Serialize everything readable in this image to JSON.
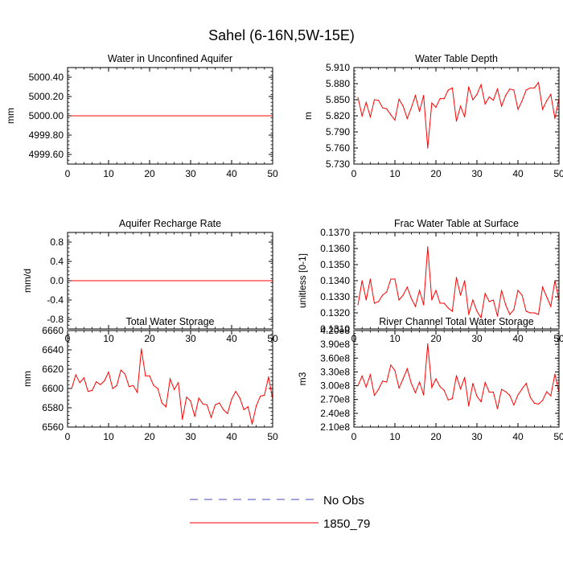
{
  "figure_title": "Sahel (6-16N,5W-15E)",
  "colors": {
    "model": "#ff0000",
    "obs": "#4b4bbb",
    "axis": "#000000"
  },
  "legend": [
    {
      "label": "No Obs",
      "style": "dashed",
      "color": "#4b4bbb"
    },
    {
      "label": "1850_79",
      "style": "solid",
      "color": "#ff0000"
    }
  ],
  "chart_data": [
    {
      "type": "line",
      "title": "Water in Unconfined Aquifer",
      "ylabel": "mm",
      "xlabel": "",
      "xlim": [
        0,
        50
      ],
      "ylim": [
        4999.5,
        5000.5
      ],
      "xticks": [
        0,
        10,
        20,
        30,
        40,
        50
      ],
      "xtick_labels": [
        "0",
        "10",
        "20",
        "30",
        "40",
        "50"
      ],
      "yticks": [
        4999.6,
        4999.8,
        5000.0,
        5000.2,
        5000.4
      ],
      "ytick_labels": [
        "4999.60",
        "4999.80",
        "5000.00",
        "5000.20",
        "5000.40"
      ],
      "series": [
        {
          "name": "1850_79",
          "x": [
            1,
            50
          ],
          "values": [
            5000.0,
            5000.0
          ]
        }
      ]
    },
    {
      "type": "line",
      "title": "Water Table Depth",
      "ylabel": "m",
      "xlabel": "",
      "xlim": [
        0,
        50
      ],
      "ylim": [
        5.73,
        5.91
      ],
      "xticks": [
        0,
        10,
        20,
        30,
        40,
        50
      ],
      "xtick_labels": [
        "0",
        "10",
        "20",
        "30",
        "40",
        "50"
      ],
      "yticks": [
        5.73,
        5.76,
        5.79,
        5.82,
        5.85,
        5.88,
        5.91
      ],
      "ytick_labels": [
        "5.730",
        "5.760",
        "5.790",
        "5.820",
        "5.850",
        "5.880",
        "5.910"
      ],
      "series": [
        {
          "name": "1850_79",
          "x_start": 1,
          "values": [
            5.854,
            5.82,
            5.845,
            5.818,
            5.85,
            5.849,
            5.835,
            5.833,
            5.822,
            5.812,
            5.851,
            5.838,
            5.815,
            5.835,
            5.858,
            5.828,
            5.858,
            5.76,
            5.844,
            5.836,
            5.852,
            5.852,
            5.868,
            5.872,
            5.81,
            5.838,
            5.818,
            5.874,
            5.85,
            5.86,
            5.878,
            5.842,
            5.855,
            5.849,
            5.87,
            5.838,
            5.858,
            5.87,
            5.868,
            5.832,
            5.848,
            5.868,
            5.872,
            5.872,
            5.882,
            5.832,
            5.848,
            5.86,
            5.815,
            5.852
          ]
        }
      ]
    },
    {
      "type": "line",
      "title": "Aquifer Recharge Rate",
      "ylabel": "mm/d",
      "xlabel": "",
      "xlim": [
        0,
        50
      ],
      "ylim": [
        -1.0,
        1.0
      ],
      "xticks": [
        0,
        10,
        20,
        30,
        40,
        50
      ],
      "xtick_labels": [
        "0",
        "10",
        "20",
        "30",
        "40",
        "50"
      ],
      "yticks": [
        -0.8,
        -0.4,
        0.0,
        0.4,
        0.8
      ],
      "ytick_labels": [
        "-0.8",
        "-0.4",
        "0.0",
        "0.4",
        "0.8"
      ],
      "series": [
        {
          "name": "1850_79",
          "x": [
            1,
            50
          ],
          "values": [
            0.0,
            0.0
          ]
        }
      ]
    },
    {
      "type": "line",
      "title": "Frac Water Table at Surface",
      "ylabel": "unitless [0-1]",
      "xlabel": "",
      "xlim": [
        0,
        50
      ],
      "ylim": [
        0.131,
        0.137
      ],
      "xticks": [
        0,
        10,
        20,
        30,
        40,
        50
      ],
      "xtick_labels": [
        "0",
        "10",
        "20",
        "30",
        "40",
        "50"
      ],
      "yticks": [
        0.131,
        0.132,
        0.133,
        0.134,
        0.135,
        0.136,
        0.137
      ],
      "ytick_labels": [
        "0.1310",
        "0.1320",
        "0.1330",
        "0.1340",
        "0.1350",
        "0.1360",
        "0.1370"
      ],
      "series": [
        {
          "name": "1850_79",
          "x_start": 1,
          "values": [
            0.1325,
            0.134,
            0.1328,
            0.1341,
            0.1326,
            0.1327,
            0.1331,
            0.1333,
            0.1341,
            0.1341,
            0.1328,
            0.1331,
            0.1336,
            0.1329,
            0.1324,
            0.1334,
            0.1325,
            0.1361,
            0.1328,
            0.1334,
            0.1326,
            0.1326,
            0.1323,
            0.1321,
            0.1342,
            0.1331,
            0.134,
            0.1319,
            0.1328,
            0.1321,
            0.1317,
            0.1332,
            0.1327,
            0.1328,
            0.1318,
            0.1334,
            0.1325,
            0.1319,
            0.1322,
            0.1334,
            0.1331,
            0.1321,
            0.132,
            0.132,
            0.1319,
            0.1336,
            0.133,
            0.1324,
            0.134,
            0.1328
          ]
        }
      ]
    },
    {
      "type": "line",
      "title": "Total Water Storage",
      "ylabel": "mm",
      "xlabel": "",
      "xlim": [
        0,
        50
      ],
      "ylim": [
        6560,
        6660
      ],
      "xticks": [
        0,
        10,
        20,
        30,
        40,
        50
      ],
      "xtick_labels": [
        "0",
        "10",
        "20",
        "30",
        "40",
        "50"
      ],
      "yticks": [
        6560,
        6580,
        6600,
        6620,
        6640,
        6660
      ],
      "ytick_labels": [
        "6560",
        "6580",
        "6600",
        "6620",
        "6640",
        "6660"
      ],
      "series": [
        {
          "name": "1850_79",
          "x_start": 1,
          "values": [
            6600,
            6614,
            6606,
            6611,
            6597,
            6598,
            6607,
            6604,
            6608,
            6617,
            6600,
            6603,
            6619,
            6615,
            6602,
            6603,
            6596,
            6641,
            6613,
            6613,
            6603,
            6600,
            6585,
            6581,
            6610,
            6599,
            6606,
            6568,
            6591,
            6587,
            6571,
            6590,
            6584,
            6583,
            6570,
            6583,
            6585,
            6578,
            6574,
            6589,
            6597,
            6590,
            6578,
            6581,
            6563,
            6582,
            6592,
            6593,
            6612,
            6589
          ]
        }
      ]
    },
    {
      "type": "line",
      "title": "River Channel Total Water Storage",
      "ylabel": "m3",
      "xlabel": "",
      "xlim": [
        0,
        50
      ],
      "ylim": [
        210000000,
        420000000
      ],
      "xticks": [
        0,
        10,
        20,
        30,
        40,
        50
      ],
      "xtick_labels": [
        "0",
        "10",
        "20",
        "30",
        "40",
        "50"
      ],
      "yticks": [
        210000000,
        240000000,
        270000000,
        300000000,
        330000000,
        360000000,
        390000000,
        420000000
      ],
      "ytick_labels": [
        "2.10e8",
        "2.40e8",
        "2.70e8",
        "3.00e8",
        "3.30e8",
        "3.60e8",
        "3.90e8",
        "4.20e8"
      ],
      "series": [
        {
          "name": "1850_79",
          "x_start": 1,
          "values": [
            300000000,
            321000000,
            297000000,
            324000000,
            279000000,
            292000000,
            310000000,
            308000000,
            345000000,
            333000000,
            295000000,
            315000000,
            337000000,
            305000000,
            285000000,
            308000000,
            280000000,
            391000000,
            296000000,
            315000000,
            298000000,
            290000000,
            269000000,
            272000000,
            322000000,
            293000000,
            318000000,
            256000000,
            305000000,
            277000000,
            265000000,
            307000000,
            286000000,
            286000000,
            250000000,
            292000000,
            287000000,
            279000000,
            258000000,
            280000000,
            293000000,
            305000000,
            275000000,
            262000000,
            260000000,
            268000000,
            287000000,
            278000000,
            325000000,
            287000000
          ]
        }
      ]
    }
  ]
}
